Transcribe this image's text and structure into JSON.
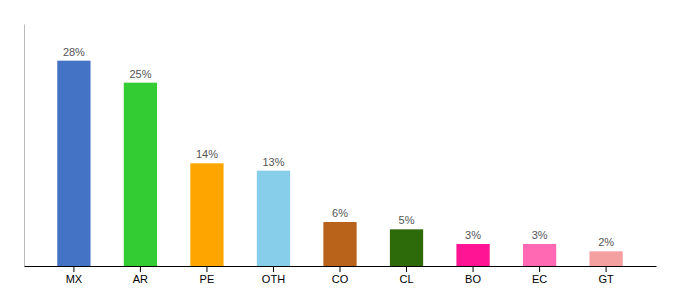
{
  "chart_data": {
    "type": "bar",
    "categories": [
      "MX",
      "AR",
      "PE",
      "OTH",
      "CO",
      "CL",
      "BO",
      "EC",
      "GT"
    ],
    "values": [
      28,
      25,
      14,
      13,
      6,
      5,
      3,
      3,
      2
    ],
    "value_labels": [
      "28%",
      "25%",
      "14%",
      "13%",
      "6%",
      "5%",
      "3%",
      "3%",
      "2%"
    ],
    "colors": [
      "#4472C4",
      "#33CC33",
      "#FFA500",
      "#87CEEB",
      "#B8621A",
      "#2D6A0A",
      "#FF1493",
      "#FF69B4",
      "#F4A0A0"
    ],
    "ylim": [
      0,
      33
    ],
    "data_labels": true,
    "tick_labels": "x"
  }
}
